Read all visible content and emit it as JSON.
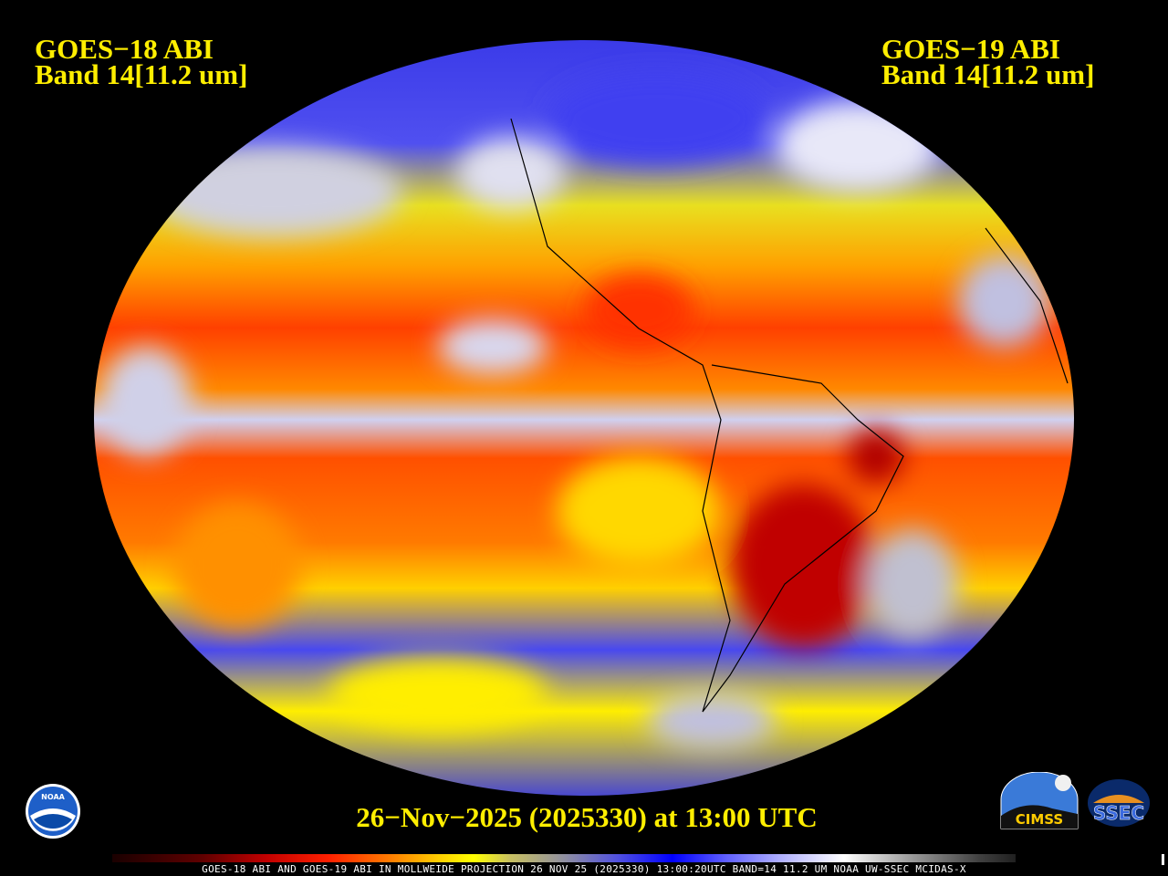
{
  "left_label": {
    "line1": "GOES−18 ABI",
    "line2": "Band 14[11.2 um]"
  },
  "right_label": {
    "line1": "GOES−19 ABI",
    "line2": "Band 14[11.2 um]"
  },
  "timestamp": "26−Nov−2025 (2025330) at 13:00 UTC",
  "footer": "GOES-18 ABI AND GOES-19 ABI IN MOLLWEIDE PROJECTION 26 NOV 25 (2025330) 13:00:20UTC BAND=14 11.2 UM NOAA UW-SSEC MCIDAS-X",
  "logos": {
    "noaa": "NOAA",
    "cimss": "CIMSS",
    "ssec": "SSEC"
  },
  "colorbar": {
    "colors": [
      "#1a0000",
      "#c00000",
      "#ff2000",
      "#ff8000",
      "#ffff00",
      "#9090a0",
      "#0000ff",
      "#ffffff",
      "#404040"
    ]
  },
  "projection": "Mollweide"
}
